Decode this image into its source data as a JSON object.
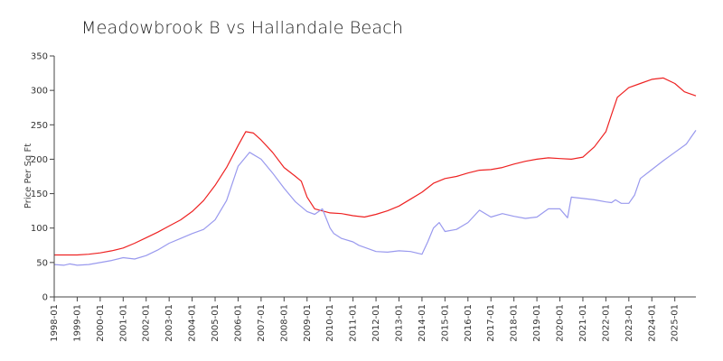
{
  "chart_data": {
    "type": "line",
    "title": "Meadowbrook B vs Hallandale Beach",
    "xlabel": "",
    "ylabel": "Price Per Sq Ft",
    "ylim": [
      0,
      350
    ],
    "yticks": [
      "0",
      "50",
      "100",
      "150",
      "200",
      "250",
      "300",
      "350"
    ],
    "xlim": [
      "1998-01",
      "2025-12"
    ],
    "xticks": [
      "1998-01",
      "1999-01",
      "2000-01",
      "2001-01",
      "2002-01",
      "2003-01",
      "2004-01",
      "2005-01",
      "2006-01",
      "2007-01",
      "2008-01",
      "2009-01",
      "2010-01",
      "2011-01",
      "2012-01",
      "2013-01",
      "2014-01",
      "2015-01",
      "2016-01",
      "2017-01",
      "2018-01",
      "2019-01",
      "2020-01",
      "2021-01",
      "2022-01",
      "2023-01",
      "2024-01",
      "2025-01"
    ],
    "grid": false,
    "legend": "none",
    "series": [
      {
        "color": "#ee2222",
        "points": [
          [
            "1998-01",
            61
          ],
          [
            "1999-01",
            61
          ],
          [
            "1999-07",
            62
          ],
          [
            "2000-01",
            64
          ],
          [
            "2000-07",
            67
          ],
          [
            "2001-01",
            71
          ],
          [
            "2001-07",
            78
          ],
          [
            "2002-01",
            86
          ],
          [
            "2002-07",
            94
          ],
          [
            "2003-01",
            103
          ],
          [
            "2003-07",
            112
          ],
          [
            "2004-01",
            124
          ],
          [
            "2004-07",
            140
          ],
          [
            "2005-01",
            162
          ],
          [
            "2005-07",
            188
          ],
          [
            "2006-01",
            220
          ],
          [
            "2006-05",
            240
          ],
          [
            "2006-09",
            238
          ],
          [
            "2007-01",
            228
          ],
          [
            "2007-07",
            210
          ],
          [
            "2008-01",
            188
          ],
          [
            "2008-07",
            175
          ],
          [
            "2008-10",
            168
          ],
          [
            "2009-01",
            145
          ],
          [
            "2009-05",
            128
          ],
          [
            "2010-01",
            122
          ],
          [
            "2010-07",
            121
          ],
          [
            "2011-01",
            118
          ],
          [
            "2011-07",
            116
          ],
          [
            "2012-01",
            120
          ],
          [
            "2012-07",
            125
          ],
          [
            "2013-01",
            132
          ],
          [
            "2013-07",
            142
          ],
          [
            "2014-01",
            152
          ],
          [
            "2014-07",
            165
          ],
          [
            "2015-01",
            172
          ],
          [
            "2015-07",
            175
          ],
          [
            "2016-01",
            180
          ],
          [
            "2016-07",
            184
          ],
          [
            "2017-01",
            185
          ],
          [
            "2017-07",
            188
          ],
          [
            "2018-01",
            193
          ],
          [
            "2018-07",
            197
          ],
          [
            "2019-01",
            200
          ],
          [
            "2019-07",
            202
          ],
          [
            "2020-01",
            201
          ],
          [
            "2020-07",
            200
          ],
          [
            "2021-01",
            203
          ],
          [
            "2021-07",
            218
          ],
          [
            "2022-01",
            240
          ],
          [
            "2022-04",
            265
          ],
          [
            "2022-07",
            290
          ],
          [
            "2023-01",
            304
          ],
          [
            "2023-07",
            310
          ],
          [
            "2024-01",
            316
          ],
          [
            "2024-07",
            318
          ],
          [
            "2025-01",
            310
          ],
          [
            "2025-06",
            298
          ],
          [
            "2025-12",
            292
          ]
        ]
      },
      {
        "color": "#9999ee",
        "points": [
          [
            "1998-01",
            47
          ],
          [
            "1998-06",
            46
          ],
          [
            "1998-09",
            48
          ],
          [
            "1999-01",
            46
          ],
          [
            "1999-07",
            47
          ],
          [
            "2000-01",
            50
          ],
          [
            "2000-07",
            53
          ],
          [
            "2001-01",
            57
          ],
          [
            "2001-07",
            55
          ],
          [
            "2002-01",
            60
          ],
          [
            "2002-07",
            68
          ],
          [
            "2003-01",
            78
          ],
          [
            "2003-07",
            85
          ],
          [
            "2004-01",
            92
          ],
          [
            "2004-07",
            98
          ],
          [
            "2005-01",
            112
          ],
          [
            "2005-07",
            140
          ],
          [
            "2006-01",
            190
          ],
          [
            "2006-07",
            210
          ],
          [
            "2007-01",
            200
          ],
          [
            "2007-07",
            180
          ],
          [
            "2008-01",
            158
          ],
          [
            "2008-07",
            138
          ],
          [
            "2009-01",
            124
          ],
          [
            "2009-05",
            120
          ],
          [
            "2009-09",
            128
          ],
          [
            "2010-01",
            100
          ],
          [
            "2010-03",
            92
          ],
          [
            "2010-07",
            85
          ],
          [
            "2011-01",
            80
          ],
          [
            "2011-04",
            75
          ],
          [
            "2011-07",
            72
          ],
          [
            "2012-01",
            66
          ],
          [
            "2012-07",
            65
          ],
          [
            "2013-01",
            67
          ],
          [
            "2013-07",
            66
          ],
          [
            "2014-01",
            62
          ],
          [
            "2014-04",
            80
          ],
          [
            "2014-07",
            100
          ],
          [
            "2014-10",
            108
          ],
          [
            "2015-01",
            95
          ],
          [
            "2015-07",
            98
          ],
          [
            "2016-01",
            108
          ],
          [
            "2016-07",
            126
          ],
          [
            "2017-01",
            116
          ],
          [
            "2017-07",
            121
          ],
          [
            "2018-01",
            117
          ],
          [
            "2018-07",
            114
          ],
          [
            "2019-01",
            116
          ],
          [
            "2019-07",
            128
          ],
          [
            "2020-01",
            128
          ],
          [
            "2020-05",
            115
          ],
          [
            "2020-07",
            145
          ],
          [
            "2021-01",
            143
          ],
          [
            "2021-07",
            141
          ],
          [
            "2022-01",
            138
          ],
          [
            "2022-04",
            137
          ],
          [
            "2022-06",
            141
          ],
          [
            "2022-09",
            136
          ],
          [
            "2023-01",
            136
          ],
          [
            "2023-04",
            148
          ],
          [
            "2023-07",
            172
          ],
          [
            "2024-01",
            185
          ],
          [
            "2024-07",
            198
          ],
          [
            "2025-01",
            210
          ],
          [
            "2025-07",
            222
          ],
          [
            "2025-09",
            230
          ],
          [
            "2025-12",
            242
          ]
        ]
      }
    ]
  }
}
